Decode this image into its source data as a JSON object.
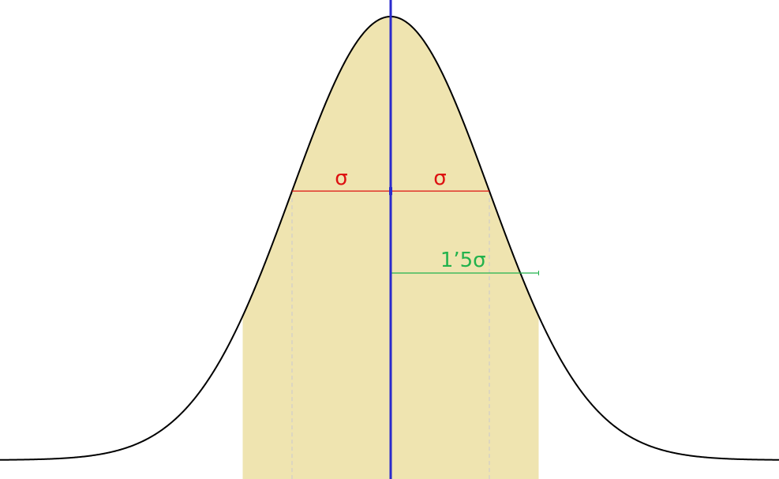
{
  "labels": {
    "sigma_left": "σ",
    "sigma_right": "σ",
    "one_point_five_sigma": "1’5σ"
  },
  "distribution": {
    "sigma": 1,
    "shaded_interval_sigmas": [
      -1.5,
      1.5
    ],
    "sigma_marker_sigmas": [
      -1,
      1
    ],
    "offset_marker_sigmas": 1.5
  },
  "colors": {
    "fill": "#efe4b0",
    "curve": "#000000",
    "mean_line": "#2a2acc",
    "sigma": "#dd1111",
    "offset": "#22b24c",
    "guide": "#c8c8d0"
  }
}
